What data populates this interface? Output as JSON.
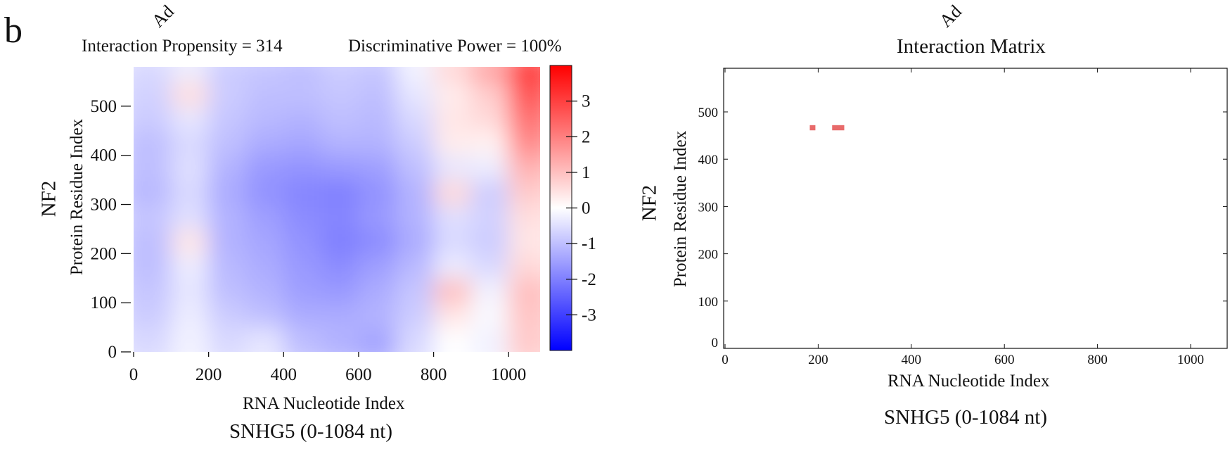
{
  "panel_label": "b",
  "top_fragments": [
    "Ad",
    "Ad"
  ],
  "chart_data": [
    {
      "type": "heatmap",
      "title": "",
      "annotations": [
        "Interaction Propensity = 314",
        "Discriminative Power = 100%"
      ],
      "xlabel": "RNA Nucleotide Index",
      "ylabel": "Protein Residue Index",
      "ylabel_outer": "NF2",
      "subtitle": "SNHG5 (0-1084 nt)",
      "xlim": [
        0,
        1084
      ],
      "ylim": [
        0,
        580
      ],
      "x_ticks": [
        0,
        200,
        400,
        600,
        800,
        1000
      ],
      "y_ticks": [
        0,
        100,
        200,
        300,
        400,
        500
      ],
      "colorbar": {
        "range": [
          -4,
          4
        ],
        "ticks": [
          3,
          2,
          1,
          0,
          -1,
          -2,
          -3
        ],
        "low_color": "#0000ff",
        "mid_color": "#ffffff",
        "high_color": "#ff0000"
      },
      "x_bins": [
        0,
        100,
        200,
        300,
        400,
        500,
        600,
        700,
        800,
        900,
        1000,
        1084
      ],
      "y_bins": [
        0,
        50,
        100,
        150,
        200,
        250,
        300,
        350,
        400,
        450,
        500,
        550,
        580
      ],
      "z": [
        [
          -0.6,
          -0.2,
          -0.6,
          -0.4,
          -1.0,
          -1.2,
          -1.4,
          -0.6,
          0.0,
          -0.2,
          0.8,
          0.2
        ],
        [
          -0.8,
          -0.3,
          -0.8,
          -1.0,
          -1.3,
          -1.3,
          -1.2,
          -0.8,
          0.4,
          -0.1,
          0.9,
          0.1
        ],
        [
          -0.9,
          -0.4,
          -1.0,
          -1.2,
          -1.5,
          -1.6,
          -1.3,
          -0.9,
          1.0,
          -0.2,
          1.0,
          0.2
        ],
        [
          -1.0,
          -0.3,
          -1.1,
          -1.3,
          -1.6,
          -1.8,
          -1.5,
          -1.1,
          -0.3,
          -0.6,
          0.6,
          -0.2
        ],
        [
          -1.0,
          0.4,
          -1.2,
          -1.4,
          -1.7,
          -2.0,
          -1.8,
          -1.3,
          -0.6,
          -0.8,
          0.4,
          -0.4
        ],
        [
          -0.9,
          -0.5,
          -1.2,
          -1.5,
          -1.8,
          -1.9,
          -1.6,
          -1.2,
          -0.5,
          -0.7,
          0.5,
          -0.3
        ],
        [
          -1.1,
          -0.6,
          -1.3,
          -1.7,
          -1.9,
          -2.0,
          -1.7,
          -1.2,
          0.6,
          -0.8,
          0.8,
          -0.5
        ],
        [
          -1.0,
          -0.5,
          -1.2,
          -1.6,
          -1.7,
          -1.6,
          -1.5,
          -1.0,
          -0.4,
          -0.3,
          1.2,
          0.6
        ],
        [
          -1.0,
          -0.6,
          -1.0,
          -1.3,
          -1.4,
          -1.2,
          -1.2,
          -0.8,
          0.3,
          0.2,
          1.8,
          1.6
        ],
        [
          -0.8,
          -0.4,
          -0.9,
          -1.1,
          -1.2,
          -1.0,
          -1.1,
          -0.6,
          0.4,
          0.6,
          2.2,
          2.0
        ],
        [
          -0.7,
          0.5,
          -0.8,
          -1.0,
          -1.0,
          -0.9,
          -1.0,
          -0.4,
          0.3,
          0.8,
          2.6,
          2.4
        ],
        [
          -0.6,
          -0.3,
          -0.8,
          -0.9,
          -1.0,
          -0.8,
          -0.9,
          -0.2,
          0.6,
          1.4,
          3.0,
          2.8
        ],
        [
          -0.5,
          -0.2,
          -0.6,
          -0.7,
          -0.8,
          -0.6,
          -0.7,
          0.0,
          0.8,
          1.8,
          3.2,
          3.0
        ]
      ]
    },
    {
      "type": "scatter",
      "title": "Interaction Matrix",
      "xlabel": "RNA Nucleotide Index",
      "ylabel": "Protein Residue Index",
      "ylabel_outer": "NF2",
      "subtitle": "SNHG5 (0-1084 nt)",
      "xlim": [
        0,
        1084
      ],
      "ylim": [
        0,
        580
      ],
      "x_ticks": [
        0,
        200,
        400,
        600,
        800,
        1000
      ],
      "y_ticks": [
        0,
        100,
        200,
        300,
        400,
        500
      ],
      "marks": [
        {
          "x0": 182,
          "x1": 194,
          "y0": 461,
          "y1": 472,
          "color": "#e86a6a"
        },
        {
          "x0": 230,
          "x1": 256,
          "y0": 461,
          "y1": 472,
          "color": "#e86a6a"
        }
      ]
    }
  ]
}
